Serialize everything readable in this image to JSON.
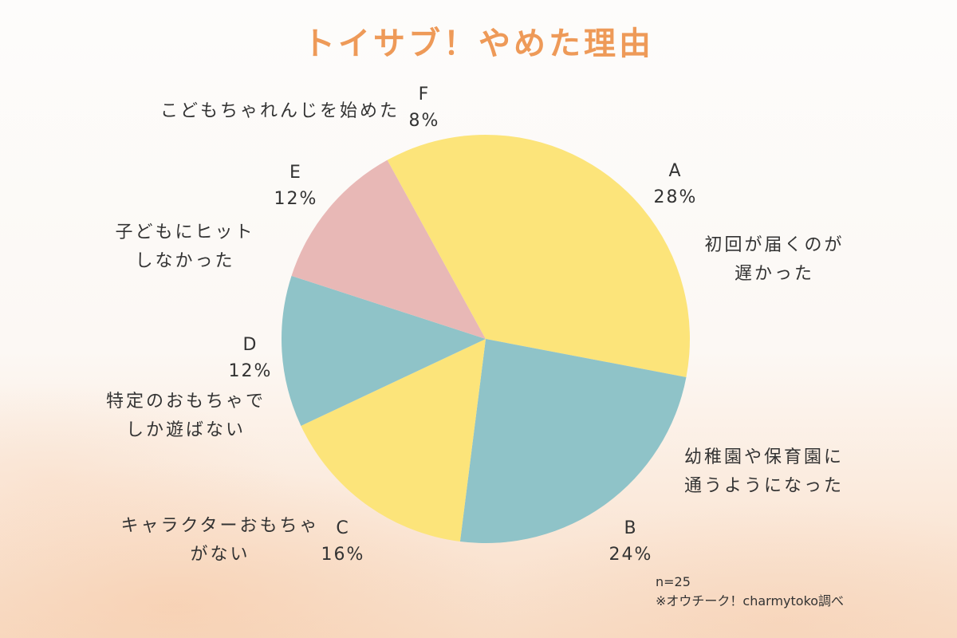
{
  "title": "トイサブ！やめた理由",
  "chart_data": {
    "type": "pie",
    "title": "トイサブ！やめた理由",
    "slices": [
      {
        "letter": "A",
        "value": 28,
        "label": "28%",
        "reason": [
          "初回が届くのが",
          "遅かった"
        ],
        "color": "#fce47a"
      },
      {
        "letter": "B",
        "value": 24,
        "label": "24%",
        "reason": [
          "幼稚園や保育園に",
          "通うようになった"
        ],
        "color": "#8fc3c8"
      },
      {
        "letter": "C",
        "value": 16,
        "label": "16%",
        "reason": [
          "キャラクターおもちゃ",
          "がない"
        ],
        "color": "#fce47a"
      },
      {
        "letter": "D",
        "value": 12,
        "label": "12%",
        "reason": [
          "特定のおもちゃで",
          "しか遊ばない"
        ],
        "color": "#8fc3c8"
      },
      {
        "letter": "E",
        "value": 12,
        "label": "12%",
        "reason": [
          "子どもにヒット",
          "しなかった"
        ],
        "color": "#e8b8b6"
      },
      {
        "letter": "F",
        "value": 8,
        "label": "8%",
        "reason": [
          "こどもちゃれんじを始めた"
        ],
        "color": "#fce47a"
      }
    ]
  },
  "footnote": {
    "sample": "n=25",
    "source": "※オウチーク！charmytoko調べ"
  }
}
